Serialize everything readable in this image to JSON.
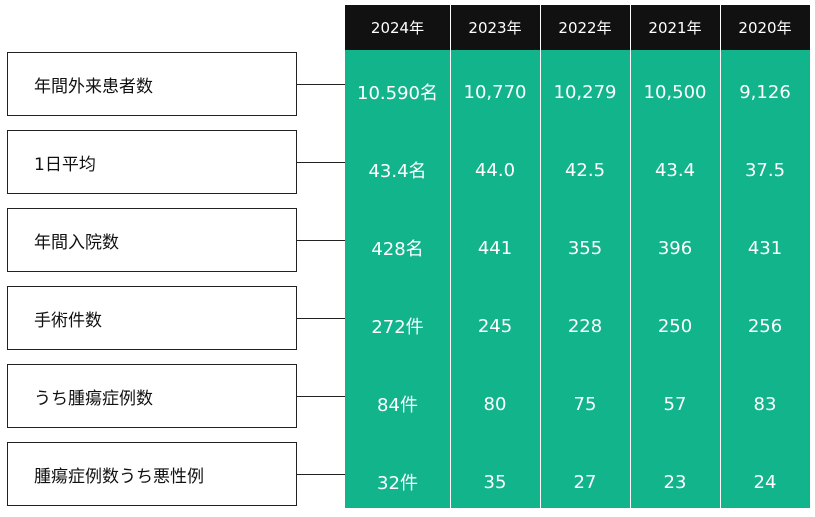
{
  "table": {
    "columns": [
      "2024年",
      "2023年",
      "2022年",
      "2021年",
      "2020年"
    ],
    "rows": [
      {
        "label": "年間外来患者数",
        "cells": [
          "10.590名",
          "10,770",
          "10,279",
          "10,500",
          "9,126"
        ]
      },
      {
        "label": "1日平均",
        "cells": [
          "43.4名",
          "44.0",
          "42.5",
          "43.4",
          "37.5"
        ]
      },
      {
        "label": "年間入院数",
        "cells": [
          "428名",
          "441",
          "355",
          "396",
          "431"
        ]
      },
      {
        "label": "手術件数",
        "cells": [
          "272件",
          "245",
          "228",
          "250",
          "256"
        ]
      },
      {
        "label": "うち腫瘍症例数",
        "cells": [
          "84件",
          "80",
          "75",
          "57",
          "83"
        ]
      },
      {
        "label": "腫瘍症例数うち悪性例",
        "cells": [
          "32件",
          "35",
          "27",
          "23",
          "24"
        ]
      }
    ]
  }
}
